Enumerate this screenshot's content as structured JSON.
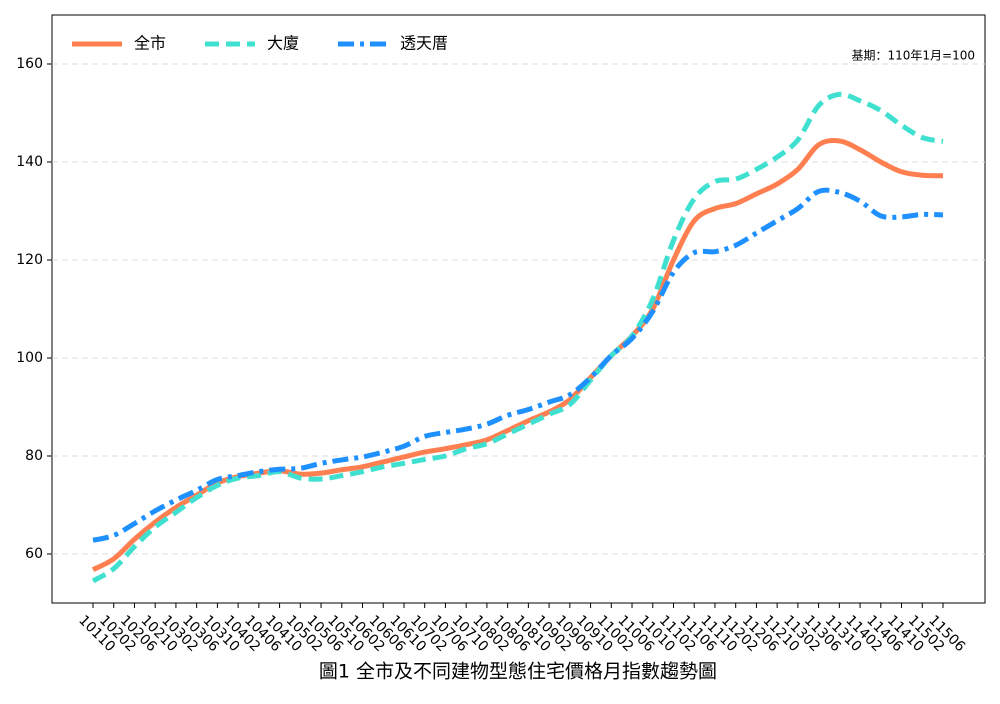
{
  "chart_data": {
    "type": "line",
    "title": "圖1  全市及不同建物型態住宅價格月指數趨勢圖",
    "annotation": "基期：110年1月=100",
    "categories": [
      "10110",
      "10202",
      "10206",
      "10210",
      "10302",
      "10306",
      "10310",
      "10402",
      "10406",
      "10410",
      "10502",
      "10506",
      "10510",
      "10602",
      "10606",
      "10610",
      "10702",
      "10706",
      "10710",
      "10802",
      "10806",
      "10810",
      "10902",
      "10906",
      "10910",
      "11002",
      "11006",
      "11010",
      "11102",
      "11106",
      "11110",
      "11202",
      "11206",
      "11210",
      "11302",
      "11306",
      "11310",
      "11402",
      "11406",
      "11410",
      "11502",
      "11506"
    ],
    "series": [
      {
        "name": "全市",
        "color": "#ff7f50",
        "dash": "solid",
        "values": [
          56.8,
          59,
          63,
          66.5,
          69.5,
          72,
          74.5,
          75.8,
          76.5,
          77,
          76.3,
          76.5,
          77.2,
          77.8,
          78.8,
          79.8,
          80.8,
          81.5,
          82.3,
          83.3,
          85.2,
          87.2,
          89,
          91.5,
          96,
          100.5,
          104.5,
          110,
          120,
          128,
          130.5,
          131.5,
          133.5,
          135.5,
          138.5,
          143.5,
          144.3,
          142.5,
          140,
          138,
          137.3,
          137.2
        ]
      },
      {
        "name": "大廈",
        "color": "#40e0d0",
        "dash": "dashed",
        "values": [
          54.5,
          57,
          61.5,
          65.5,
          68.5,
          71.5,
          74,
          75.5,
          76,
          76.8,
          75.5,
          75.3,
          76,
          76.8,
          77.8,
          78.5,
          79.3,
          80,
          81.5,
          82.5,
          84.5,
          86.5,
          88.5,
          90.5,
          95.5,
          100.5,
          104.5,
          112,
          124,
          132.5,
          136,
          136.5,
          138.5,
          141,
          144.5,
          151.5,
          153.8,
          152.5,
          150.5,
          147.5,
          145,
          144.2
        ]
      },
      {
        "name": "透天厝",
        "color": "#1e90ff",
        "dash": "dashdot",
        "values": [
          62.8,
          63.8,
          66.2,
          68.8,
          71,
          73,
          75.2,
          76,
          76.8,
          77.3,
          77.5,
          78.5,
          79.2,
          79.8,
          80.8,
          82,
          84,
          84.8,
          85.5,
          86.5,
          88.3,
          89.5,
          91,
          92.5,
          96,
          100.5,
          104,
          109.5,
          117.5,
          121.5,
          121.7,
          123,
          125.5,
          128,
          130.5,
          134,
          133.8,
          132,
          129,
          128.8,
          129.3,
          129.2
        ]
      }
    ],
    "ylim": [
      50,
      170
    ],
    "yticks": [
      60,
      80,
      100,
      120,
      140,
      160
    ],
    "grid": true,
    "legend": "upper left"
  }
}
